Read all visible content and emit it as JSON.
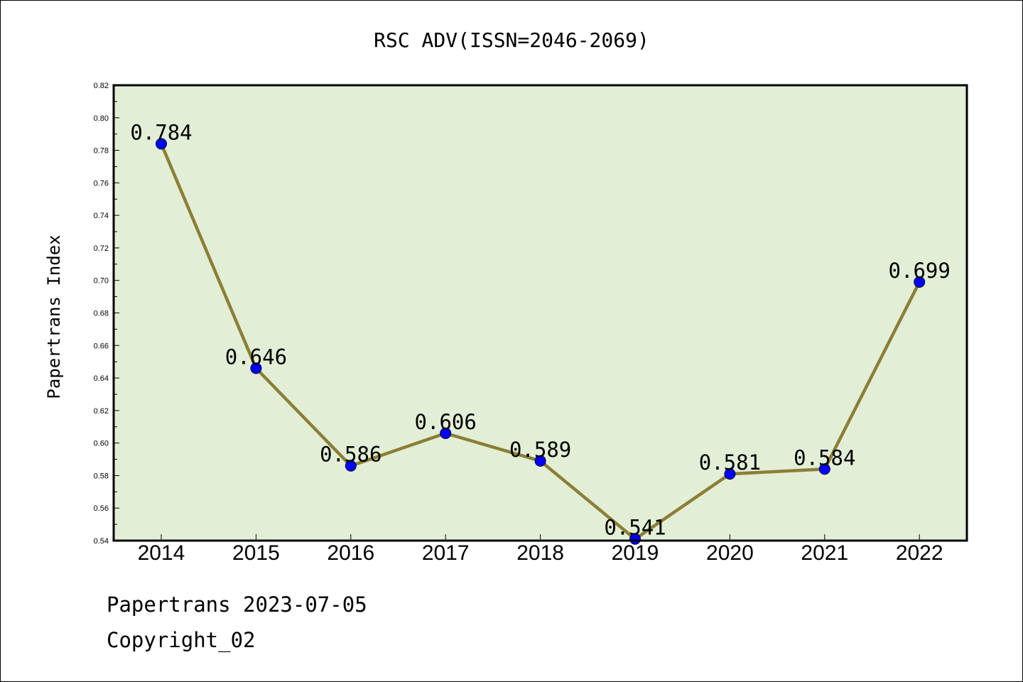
{
  "chart_data": {
    "type": "line",
    "title": "RSC ADV(ISSN=2046-2069)",
    "xlabel": "",
    "ylabel": "Papertrans Index",
    "categories": [
      "2014",
      "2015",
      "2016",
      "2017",
      "2018",
      "2019",
      "2020",
      "2021",
      "2022"
    ],
    "values": [
      0.784,
      0.646,
      0.586,
      0.606,
      0.589,
      0.541,
      0.581,
      0.584,
      0.699
    ],
    "data_labels": [
      "0.784",
      "0.646",
      "0.586",
      "0.606",
      "0.589",
      "0.541",
      "0.581",
      "0.584",
      "0.699"
    ],
    "ylim": [
      0.54,
      0.82
    ],
    "yticks": [
      "0.54",
      "0.56",
      "0.58",
      "0.60",
      "0.62",
      "0.64",
      "0.66",
      "0.68",
      "0.70",
      "0.72",
      "0.74",
      "0.76",
      "0.78",
      "0.80",
      "0.82"
    ],
    "grid": false,
    "colors": {
      "plot_background": "#e2efd6",
      "line": "#8c7e36",
      "marker": "#0000ff"
    }
  },
  "footer": {
    "date_line": "Papertrans 2023-07-05",
    "copyright": "Copyright_02"
  }
}
